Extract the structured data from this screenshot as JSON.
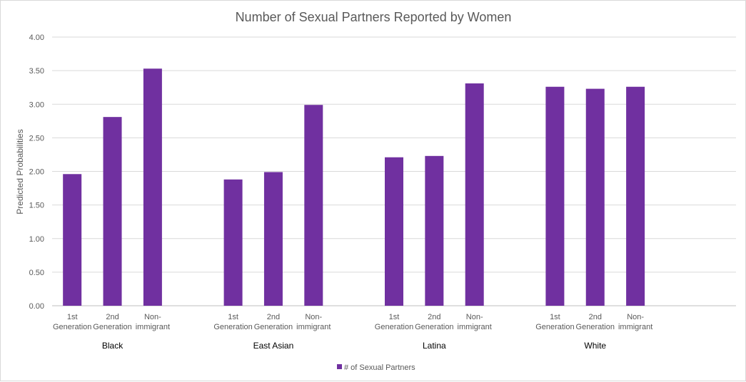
{
  "chart_data": {
    "type": "bar",
    "title": "Number of Sexual Partners Reported by Women",
    "ylabel": "Predicted Probabilities",
    "xlabel": "",
    "ylim": [
      0,
      4
    ],
    "yticks": [
      "0.00",
      "0.50",
      "1.00",
      "1.50",
      "2.00",
      "2.50",
      "3.00",
      "3.50",
      "4.00"
    ],
    "grid": true,
    "legend_position": "bottom",
    "groups": [
      {
        "name": "Black",
        "categories": [
          [
            "1st",
            "Generation"
          ],
          [
            "2nd",
            "Generation"
          ],
          [
            "Non-",
            "immigrant"
          ]
        ],
        "values": [
          1.96,
          2.81,
          3.53
        ]
      },
      {
        "name": "East Asian",
        "categories": [
          [
            "1st",
            "Generation"
          ],
          [
            "2nd",
            "Generation"
          ],
          [
            "Non-",
            "immigrant"
          ]
        ],
        "values": [
          1.88,
          1.99,
          2.99
        ]
      },
      {
        "name": "Latina",
        "categories": [
          [
            "1st",
            "Generation"
          ],
          [
            "2nd",
            "Generation"
          ],
          [
            "Non-",
            "immigrant"
          ]
        ],
        "values": [
          2.21,
          2.23,
          3.31
        ]
      },
      {
        "name": "White",
        "categories": [
          [
            "1st",
            "Generation"
          ],
          [
            "2nd",
            "Generation"
          ],
          [
            "Non-",
            "immigrant"
          ]
        ],
        "values": [
          3.26,
          3.23,
          3.26
        ]
      }
    ],
    "series": [
      {
        "name": "# of Sexual Partners",
        "color": "#7030a0"
      }
    ]
  }
}
